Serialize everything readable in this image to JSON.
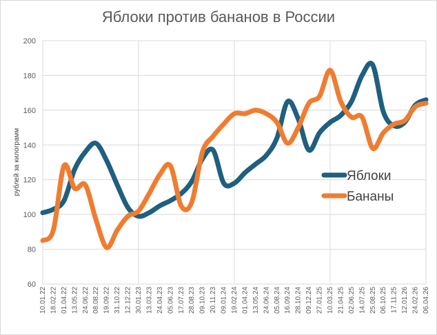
{
  "chart_data": {
    "type": "line",
    "title": "Яблоки против бананов в России",
    "ylabel": "рублей за килограмм",
    "xlabel": "",
    "ylim": [
      60,
      200
    ],
    "yticks": [
      60,
      80,
      100,
      120,
      140,
      160,
      180,
      200
    ],
    "grid": true,
    "legend_position": "right",
    "categories": [
      "10.01.22",
      "18.02.22",
      "01.04.22",
      "13.05.22",
      "24.06.22",
      "08.08.22",
      "19.09.22",
      "31.10.22",
      "12.12.22",
      "30.01.23",
      "13.03.23",
      "24.04.23",
      "05.06.23",
      "17.07.23",
      "28.08.23",
      "09.10.23",
      "20.11.23",
      "09.01.24",
      "19.02.24",
      "01.04.24",
      "13.05.24",
      "24.06.24",
      "05.08.24",
      "16.09.24",
      "28.10.24",
      "09.12.24",
      "27.01.25",
      "10.03.25",
      "21.04.25",
      "02.06.25",
      "14.07.25",
      "25.08.25",
      "06.10.25",
      "17.11.25",
      "12.01.26",
      "24.02.26",
      "06.04.26"
    ],
    "series": [
      {
        "name": "Яблоки",
        "color": "#1f5f7f",
        "values": [
          101,
          103,
          108,
          126,
          136,
          141,
          131,
          117,
          104,
          99,
          101,
          105,
          108,
          112,
          119,
          132,
          137,
          118,
          118,
          124,
          129,
          134,
          144,
          165,
          155,
          137,
          147,
          153,
          157,
          165,
          180,
          186,
          159,
          151,
          153,
          163,
          166
        ]
      },
      {
        "name": "Бананы",
        "color": "#ef7d31",
        "values": [
          85,
          91,
          128,
          115,
          117,
          97,
          81,
          91,
          99,
          102,
          112,
          123,
          128,
          105,
          107,
          136,
          145,
          152,
          158,
          158,
          160,
          158,
          153,
          141,
          150,
          164,
          168,
          183,
          165,
          156,
          156,
          138,
          147,
          152,
          154,
          162,
          164
        ]
      }
    ]
  }
}
